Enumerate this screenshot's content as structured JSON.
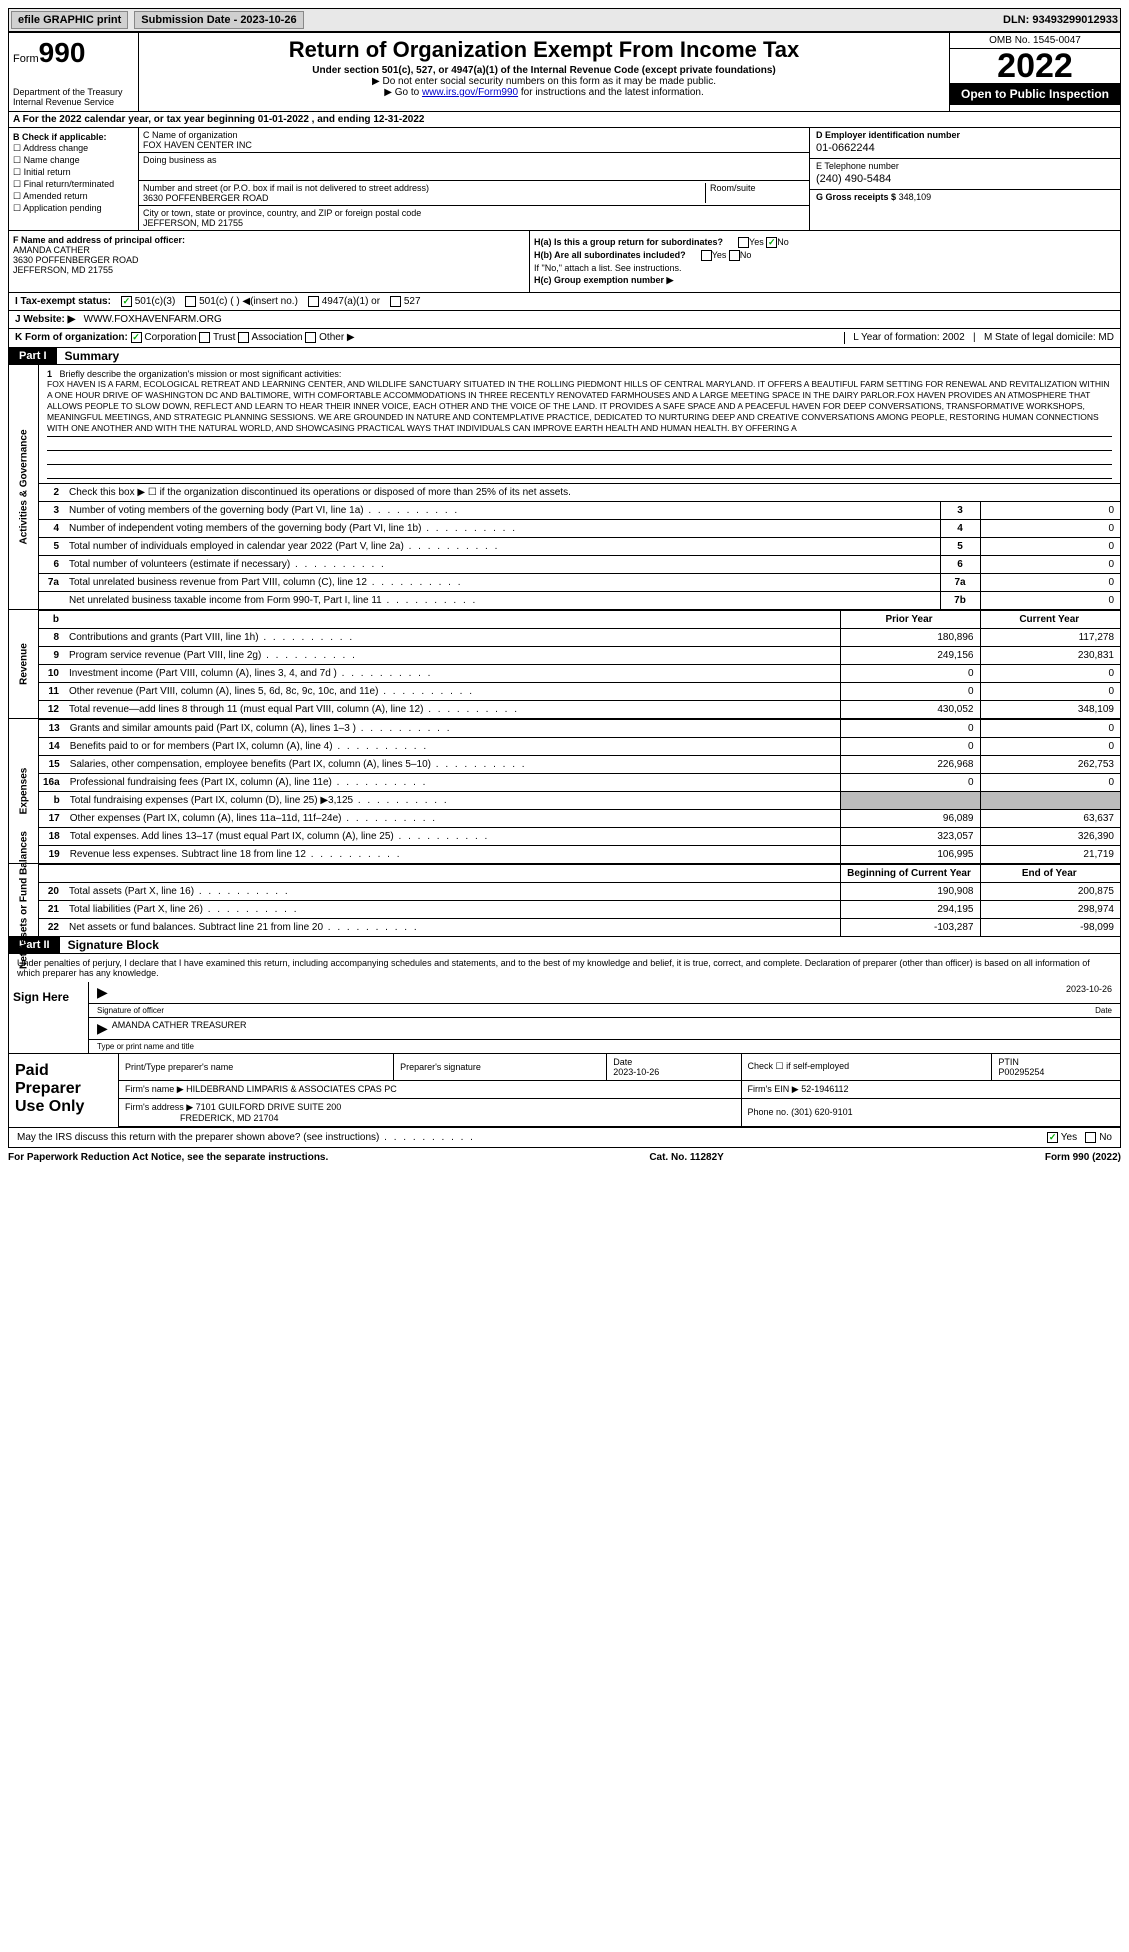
{
  "topbar": {
    "efile": "efile GRAPHIC print",
    "submission": "Submission Date - 2023-10-26",
    "dln": "DLN: 93493299012933"
  },
  "header": {
    "form": "Form",
    "formnum": "990",
    "title": "Return of Organization Exempt From Income Tax",
    "sub1": "Under section 501(c), 527, or 4947(a)(1) of the Internal Revenue Code (except private foundations)",
    "sub2": "▶ Do not enter social security numbers on this form as it may be made public.",
    "sub3": "▶ Go to ",
    "link": "www.irs.gov/Form990",
    "sub3b": " for instructions and the latest information.",
    "omb": "OMB No. 1545-0047",
    "year": "2022",
    "inspect": "Open to Public Inspection",
    "dept": "Department of the Treasury Internal Revenue Service"
  },
  "rowA": "A For the 2022 calendar year, or tax year beginning 01-01-2022    , and ending 12-31-2022",
  "colB": {
    "hdr": "B Check if applicable:",
    "o1": "Address change",
    "o2": "Name change",
    "o3": "Initial return",
    "o4": "Final return/terminated",
    "o5": "Amended return",
    "o6": "Application pending"
  },
  "colC": {
    "c_label": "C Name of organization",
    "c_name": "FOX HAVEN CENTER INC",
    "dba_label": "Doing business as",
    "addr_label": "Number and street (or P.O. box if mail is not delivered to street address)",
    "addr": "3630 POFFENBERGER ROAD",
    "room_label": "Room/suite",
    "city_label": "City or town, state or province, country, and ZIP or foreign postal code",
    "city": "JEFFERSON, MD  21755"
  },
  "colD": {
    "d_label": "D Employer identification number",
    "d_val": "01-0662244",
    "e_label": "E Telephone number",
    "e_val": "(240) 490-5484",
    "g_label": "G Gross receipts $",
    "g_val": "348,109"
  },
  "rowF": {
    "f_label": "F  Name and address of principal officer:",
    "name": "AMANDA CATHER",
    "addr1": "3630 POFFENBERGER ROAD",
    "addr2": "JEFFERSON, MD  21755"
  },
  "rowH": {
    "ha": "H(a)  Is this a group return for subordinates?",
    "yes": "Yes",
    "no": "No",
    "hb": "H(b)  Are all subordinates included?",
    "hb2": "If \"No,\" attach a list. See instructions.",
    "hc": "H(c)  Group exemption number ▶"
  },
  "rowI": {
    "label": "I   Tax-exempt status:",
    "o1": "501(c)(3)",
    "o2": "501(c) (  ) ◀(insert no.)",
    "o3": "4947(a)(1) or",
    "o4": "527"
  },
  "rowJ": {
    "label": "J   Website: ▶",
    "val": "WWW.FOXHAVENFARM.ORG"
  },
  "rowK": {
    "label": "K Form of organization:",
    "o1": "Corporation",
    "o2": "Trust",
    "o3": "Association",
    "o4": "Other ▶",
    "l": "L Year of formation: 2002",
    "m": "M State of legal domicile: MD"
  },
  "part1": {
    "bar": "Part I",
    "title": "Summary"
  },
  "mission": {
    "num": "1",
    "label": "Briefly describe the organization's mission or most significant activities:",
    "text": "FOX HAVEN IS A FARM, ECOLOGICAL RETREAT AND LEARNING CENTER, AND WILDLIFE SANCTUARY SITUATED IN THE ROLLING PIEDMONT HILLS OF CENTRAL MARYLAND. IT OFFERS A BEAUTIFUL FARM SETTING FOR RENEWAL AND REVITALIZATION WITHIN A ONE HOUR DRIVE OF WASHINGTON DC AND BALTIMORE, WITH COMFORTABLE ACCOMMODATIONS IN THREE RECENTLY RENOVATED FARMHOUSES AND A LARGE MEETING SPACE IN THE DAIRY PARLOR.FOX HAVEN PROVIDES AN ATMOSPHERE THAT ALLOWS PEOPLE TO SLOW DOWN, REFLECT AND LEARN TO HEAR THEIR INNER VOICE, EACH OTHER AND THE VOICE OF THE LAND. IT PROVIDES A SAFE SPACE AND A PEACEFUL HAVEN FOR DEEP CONVERSATIONS, TRANSFORMATIVE WORKSHOPS, MEANINGFUL MEETINGS, AND STRATEGIC PLANNING SESSIONS. WE ARE GROUNDED IN NATURE AND CONTEMPLATIVE PRACTICE, DEDICATED TO NURTURING DEEP AND CREATIVE CONVERSATIONS AMONG PEOPLE, RESTORING HUMAN CONNECTIONS WITH ONE ANOTHER AND WITH THE NATURAL WORLD, AND SHOWCASING PRACTICAL WAYS THAT INDIVIDUALS CAN IMPROVE EARTH HEALTH AND HUMAN HEALTH. BY OFFERING A"
  },
  "activities": {
    "side": "Activities & Governance",
    "l2": "Check this box ▶ ☐ if the organization discontinued its operations or disposed of more than 25% of its net assets.",
    "rows": [
      {
        "n": "3",
        "d": "Number of voting members of the governing body (Part VI, line 1a)",
        "b": "3",
        "v": "0"
      },
      {
        "n": "4",
        "d": "Number of independent voting members of the governing body (Part VI, line 1b)",
        "b": "4",
        "v": "0"
      },
      {
        "n": "5",
        "d": "Total number of individuals employed in calendar year 2022 (Part V, line 2a)",
        "b": "5",
        "v": "0"
      },
      {
        "n": "6",
        "d": "Total number of volunteers (estimate if necessary)",
        "b": "6",
        "v": "0"
      },
      {
        "n": "7a",
        "d": "Total unrelated business revenue from Part VIII, column (C), line 12",
        "b": "7a",
        "v": "0"
      },
      {
        "n": "",
        "d": "Net unrelated business taxable income from Form 990-T, Part I, line 11",
        "b": "7b",
        "v": "0"
      }
    ]
  },
  "revenue": {
    "side": "Revenue",
    "hdr": {
      "b": "b",
      "py": "Prior Year",
      "cy": "Current Year"
    },
    "rows": [
      {
        "n": "8",
        "d": "Contributions and grants (Part VIII, line 1h)",
        "py": "180,896",
        "cy": "117,278"
      },
      {
        "n": "9",
        "d": "Program service revenue (Part VIII, line 2g)",
        "py": "249,156",
        "cy": "230,831"
      },
      {
        "n": "10",
        "d": "Investment income (Part VIII, column (A), lines 3, 4, and 7d )",
        "py": "0",
        "cy": "0"
      },
      {
        "n": "11",
        "d": "Other revenue (Part VIII, column (A), lines 5, 6d, 8c, 9c, 10c, and 11e)",
        "py": "0",
        "cy": "0"
      },
      {
        "n": "12",
        "d": "Total revenue—add lines 8 through 11 (must equal Part VIII, column (A), line 12)",
        "py": "430,052",
        "cy": "348,109"
      }
    ]
  },
  "expenses": {
    "side": "Expenses",
    "rows": [
      {
        "n": "13",
        "d": "Grants and similar amounts paid (Part IX, column (A), lines 1–3 )",
        "py": "0",
        "cy": "0"
      },
      {
        "n": "14",
        "d": "Benefits paid to or for members (Part IX, column (A), line 4)",
        "py": "0",
        "cy": "0"
      },
      {
        "n": "15",
        "d": "Salaries, other compensation, employee benefits (Part IX, column (A), lines 5–10)",
        "py": "226,968",
        "cy": "262,753"
      },
      {
        "n": "16a",
        "d": "Professional fundraising fees (Part IX, column (A), line 11e)",
        "py": "0",
        "cy": "0"
      },
      {
        "n": "b",
        "d": "Total fundraising expenses (Part IX, column (D), line 25) ▶3,125",
        "py": "grey",
        "cy": "grey"
      },
      {
        "n": "17",
        "d": "Other expenses (Part IX, column (A), lines 11a–11d, 11f–24e)",
        "py": "96,089",
        "cy": "63,637"
      },
      {
        "n": "18",
        "d": "Total expenses. Add lines 13–17 (must equal Part IX, column (A), line 25)",
        "py": "323,057",
        "cy": "326,390"
      },
      {
        "n": "19",
        "d": "Revenue less expenses. Subtract line 18 from line 12",
        "py": "106,995",
        "cy": "21,719"
      }
    ]
  },
  "netassets": {
    "side": "Net Assets or Fund Balances",
    "hdr": {
      "py": "Beginning of Current Year",
      "cy": "End of Year"
    },
    "rows": [
      {
        "n": "20",
        "d": "Total assets (Part X, line 16)",
        "py": "190,908",
        "cy": "200,875"
      },
      {
        "n": "21",
        "d": "Total liabilities (Part X, line 26)",
        "py": "294,195",
        "cy": "298,974"
      },
      {
        "n": "22",
        "d": "Net assets or fund balances. Subtract line 21 from line 20",
        "py": "-103,287",
        "cy": "-98,099"
      }
    ]
  },
  "part2": {
    "bar": "Part II",
    "title": "Signature Block",
    "penalties": "Under penalties of perjury, I declare that I have examined this return, including accompanying schedules and statements, and to the best of my knowledge and belief, it is true, correct, and complete. Declaration of preparer (other than officer) is based on all information of which preparer has any knowledge."
  },
  "sign": {
    "left": "Sign Here",
    "sig_label": "Signature of officer",
    "date": "2023-10-26",
    "date_label": "Date",
    "name": "AMANDA CATHER  TREASURER",
    "name_label": "Type or print name and title"
  },
  "paid": {
    "left": "Paid Preparer Use Only",
    "h1": "Print/Type preparer's name",
    "h2": "Preparer's signature",
    "h3": "Date",
    "h3v": "2023-10-26",
    "h4": "Check ☐ if self-employed",
    "h5": "PTIN",
    "h5v": "P00295254",
    "firm_label": "Firm's name    ▶",
    "firm": "HILDEBRAND LIMPARIS & ASSOCIATES CPAS PC",
    "ein_label": "Firm's EIN ▶",
    "ein": "52-1946112",
    "addr_label": "Firm's address ▶",
    "addr1": "7101 GUILFORD DRIVE SUITE 200",
    "addr2": "FREDERICK, MD  21704",
    "phone_label": "Phone no.",
    "phone": "(301) 620-9101"
  },
  "footer": {
    "q": "May the IRS discuss this return with the preparer shown above? (see instructions)",
    "yes": "Yes",
    "no": "No"
  },
  "bottom": {
    "l": "For Paperwork Reduction Act Notice, see the separate instructions.",
    "m": "Cat. No. 11282Y",
    "r": "Form 990 (2022)"
  }
}
